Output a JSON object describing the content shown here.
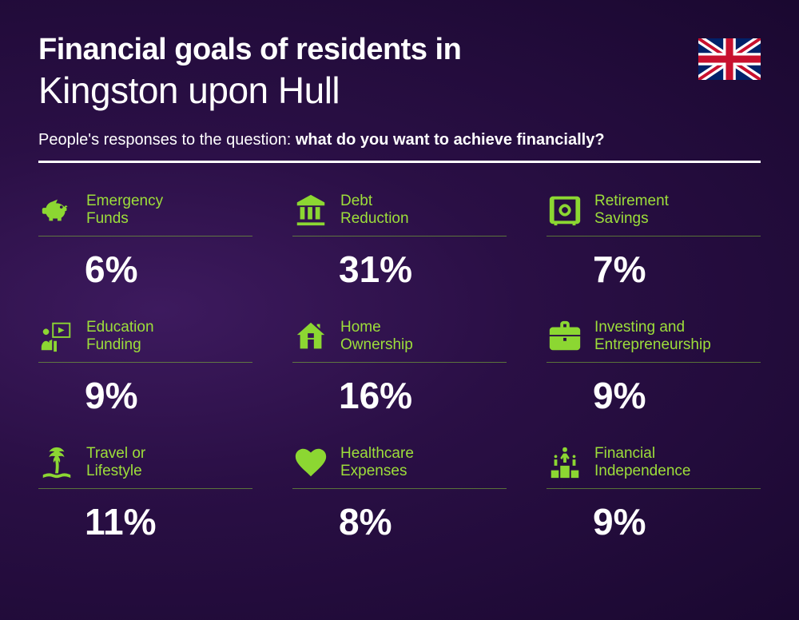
{
  "header": {
    "title_line1": "Financial goals of residents in",
    "title_line2": "Kingston upon Hull",
    "subtitle_plain": "People's responses to the question: ",
    "subtitle_bold": "what do you want to achieve financially?"
  },
  "styling": {
    "background_gradient": [
      "#3d1a5e",
      "#2a0f45",
      "#1a0830"
    ],
    "accent_color": "#9dde3a",
    "text_color": "#ffffff",
    "title_line1_fontsize": 38,
    "title_line1_weight": 800,
    "title_line2_fontsize": 46,
    "title_line2_weight": 300,
    "subtitle_fontsize": 20,
    "divider_color": "#ffffff",
    "divider_thickness": 3,
    "item_label_fontsize": 19,
    "item_label_color": "#9dde3a",
    "item_value_fontsize": 46,
    "item_value_weight": 800,
    "item_underline_color": "rgba(140,215,50,0.5)",
    "grid_columns": 3,
    "grid_column_gap": 50,
    "grid_row_gap": 34,
    "icon_color": "#8cd732"
  },
  "flag": {
    "country": "United Kingdom",
    "width": 78,
    "height": 50
  },
  "items": [
    {
      "icon": "piggy-bank-icon",
      "label": "Emergency\nFunds",
      "value": "6%"
    },
    {
      "icon": "bank-icon",
      "label": "Debt\nReduction",
      "value": "31%"
    },
    {
      "icon": "safe-icon",
      "label": "Retirement\nSavings",
      "value": "7%"
    },
    {
      "icon": "presentation-icon",
      "label": "Education\nFunding",
      "value": "9%"
    },
    {
      "icon": "house-icon",
      "label": "Home\nOwnership",
      "value": "16%"
    },
    {
      "icon": "briefcase-icon",
      "label": "Investing and\nEntrepreneurship",
      "value": "9%"
    },
    {
      "icon": "palm-tree-icon",
      "label": "Travel or\nLifestyle",
      "value": "11%"
    },
    {
      "icon": "heart-pulse-icon",
      "label": "Healthcare\nExpenses",
      "value": "8%"
    },
    {
      "icon": "podium-icon",
      "label": "Financial\nIndependence",
      "value": "9%"
    }
  ]
}
